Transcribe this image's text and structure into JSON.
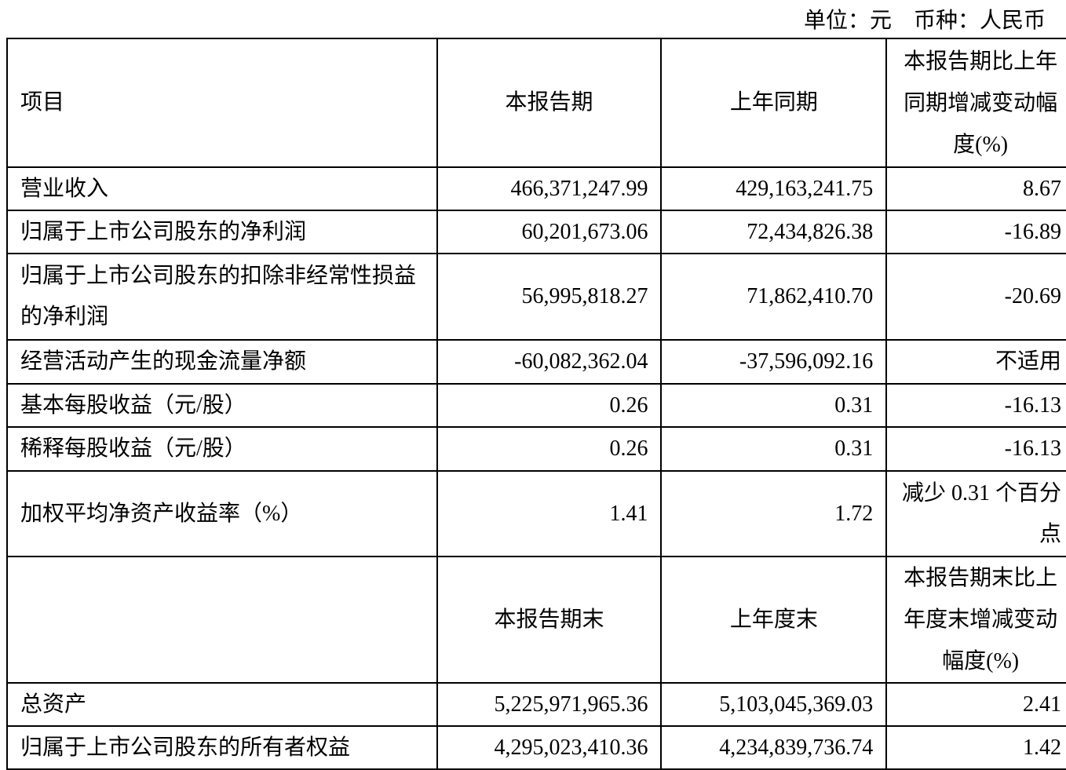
{
  "unit_line": "单位：元　币种：人民币",
  "header1": [
    "项目",
    "本报告期",
    "上年同期",
    "本报告期比上年同期增减变动幅度(%)"
  ],
  "rows1": [
    [
      "营业收入",
      "466,371,247.99",
      "429,163,241.75",
      "8.67"
    ],
    [
      "归属于上市公司股东的净利润",
      "60,201,673.06",
      "72,434,826.38",
      "-16.89"
    ],
    [
      "归属于上市公司股东的扣除非经常性损益的净利润",
      "56,995,818.27",
      "71,862,410.70",
      "-20.69"
    ],
    [
      "经营活动产生的现金流量净额",
      "-60,082,362.04",
      "-37,596,092.16",
      "不适用"
    ],
    [
      "基本每股收益（元/股）",
      "0.26",
      "0.31",
      "-16.13"
    ],
    [
      "稀释每股收益（元/股）",
      "0.26",
      "0.31",
      "-16.13"
    ],
    [
      "加权平均净资产收益率（%）",
      "1.41",
      "1.72",
      "减少 0.31 个百分点"
    ]
  ],
  "header2": [
    "",
    "本报告期末",
    "上年度末",
    "本报告期末比上年度末增减变动幅度(%)"
  ],
  "rows2": [
    [
      "总资产",
      "5,225,971,965.36",
      "5,103,045,369.03",
      "2.41"
    ],
    [
      "归属于上市公司股东的所有者权益",
      "4,295,023,410.36",
      "4,234,839,736.74",
      "1.42"
    ]
  ]
}
